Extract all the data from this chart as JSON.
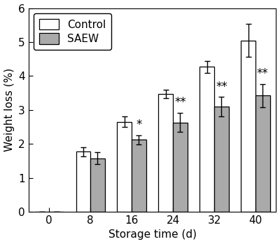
{
  "categories": [
    0,
    8,
    16,
    24,
    32,
    40
  ],
  "control_values": [
    0,
    1.77,
    2.65,
    3.47,
    4.27,
    5.05
  ],
  "saew_values": [
    0,
    1.58,
    2.12,
    2.63,
    3.1,
    3.42
  ],
  "control_errors": [
    0,
    0.13,
    0.15,
    0.12,
    0.18,
    0.48
  ],
  "saew_errors": [
    0,
    0.17,
    0.14,
    0.28,
    0.28,
    0.35
  ],
  "annot_indices": [
    2,
    3,
    4,
    5
  ],
  "annot_texts": [
    "*",
    "**",
    "**",
    "**"
  ],
  "control_color": "#ffffff",
  "saew_color": "#aaaaaa",
  "edge_color": "#000000",
  "bar_width": 2.8,
  "xlabel": "Storage time (d)",
  "ylabel": "Weight loss (%)",
  "ylim": [
    0,
    6
  ],
  "yticks": [
    0,
    1,
    2,
    3,
    4,
    5,
    6
  ],
  "xlim": [
    -4,
    44
  ],
  "legend_labels": [
    "Control",
    "SAEW"
  ],
  "fontsize": 11,
  "tick_fontsize": 11,
  "legend_fontsize": 11
}
